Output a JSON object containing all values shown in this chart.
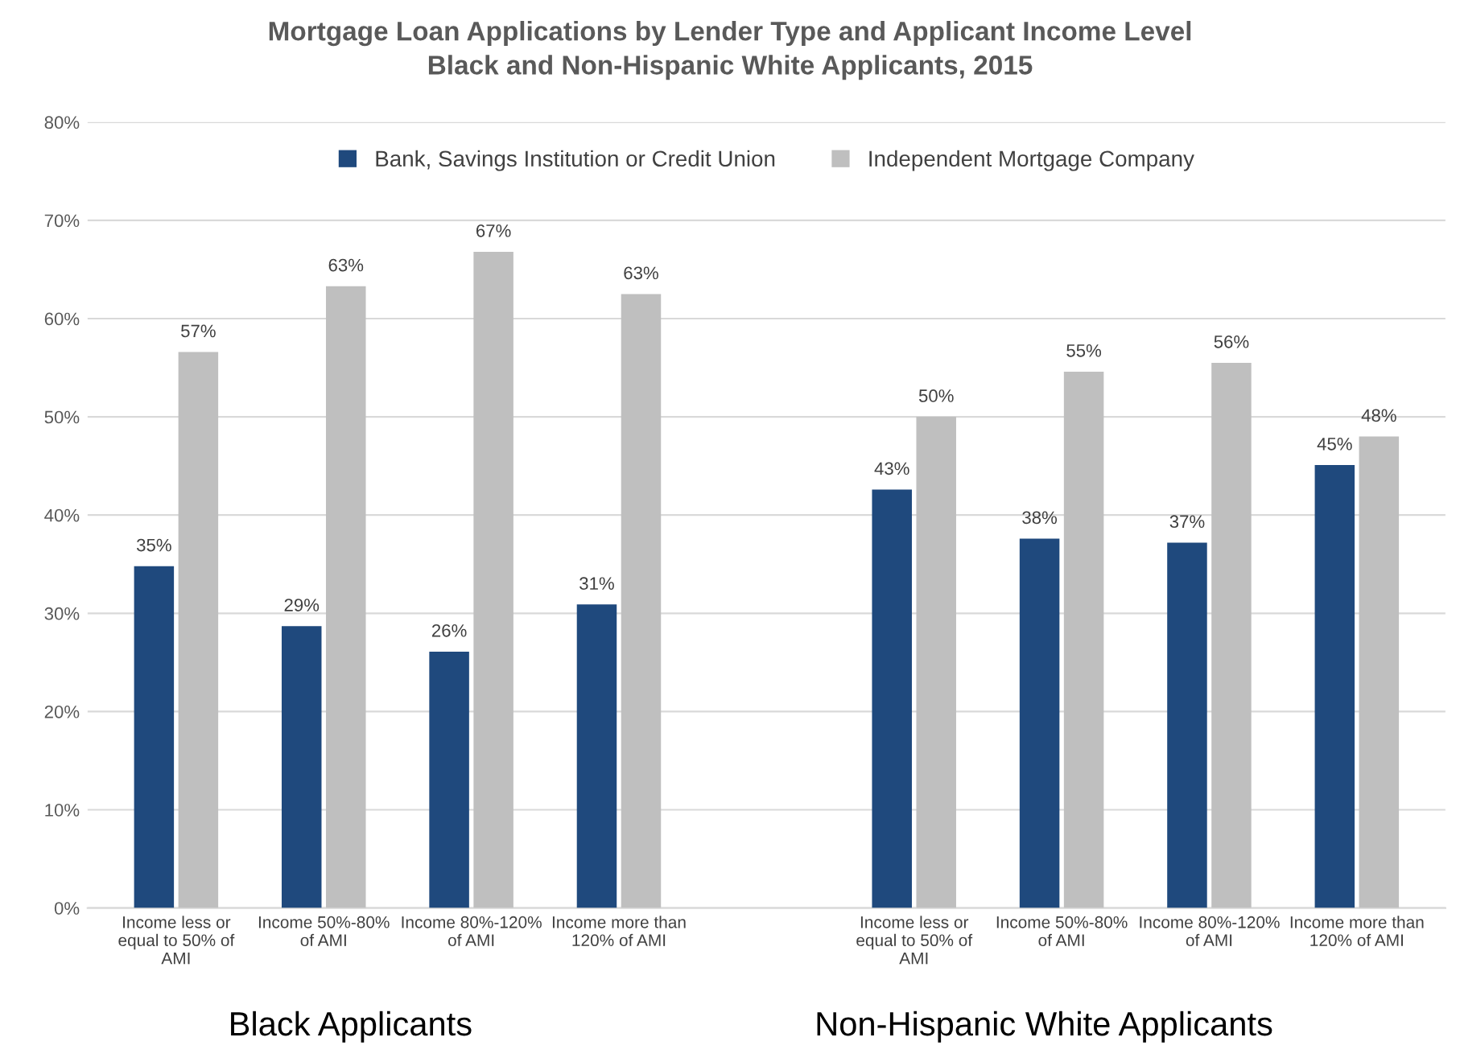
{
  "chart_data": {
    "type": "bar",
    "title": "Mortgage Loan Applications by Lender Type and Applicant Income Level",
    "subtitle": "Black and Non-Hispanic White Applicants, 2015",
    "categories": [
      "Income less or\nequal to 50% of\nAMI",
      "Income 50%-80%\nof AMI",
      "Income 80%-120%\nof AMI",
      "Income more than\n120% of AMI",
      null,
      "Income less or\nequal to 50% of\nAMI",
      "Income 50%-80%\nof AMI",
      "Income 80%-120%\nof AMI",
      "Income more than\n120% of AMI"
    ],
    "series": [
      {
        "name": "Bank, Savings Institution or Credit Union",
        "color": "#1f497d",
        "values": [
          34.8,
          28.7,
          26.1,
          30.9,
          null,
          42.6,
          37.6,
          37.2,
          45.1
        ],
        "value_labels": [
          "35%",
          "29%",
          "26%",
          "31%",
          null,
          "43%",
          "38%",
          "37%",
          "45%"
        ]
      },
      {
        "name": "Independent Mortgage Company",
        "color": "#bfbfbf",
        "values": [
          56.6,
          63.3,
          66.8,
          62.5,
          null,
          50.0,
          54.6,
          55.5,
          48.0
        ],
        "value_labels": [
          "57%",
          "63%",
          "67%",
          "63%",
          null,
          "50%",
          "55%",
          "56%",
          "48%"
        ]
      }
    ],
    "ylim": [
      0,
      80
    ],
    "yticks": [
      {
        "value": 0,
        "label": "0%"
      },
      {
        "value": 10,
        "label": "10%"
      },
      {
        "value": 20,
        "label": "20%"
      },
      {
        "value": 30,
        "label": "30%"
      },
      {
        "value": 40,
        "label": "40%"
      },
      {
        "value": 50,
        "label": "50%"
      },
      {
        "value": 60,
        "label": "60%"
      },
      {
        "value": 70,
        "label": "70%"
      },
      {
        "value": 80,
        "label": "80%"
      }
    ],
    "grid": "y",
    "legend": "top",
    "annotations": [
      "Black Applicants",
      "Non-Hispanic White Applicants"
    ]
  }
}
